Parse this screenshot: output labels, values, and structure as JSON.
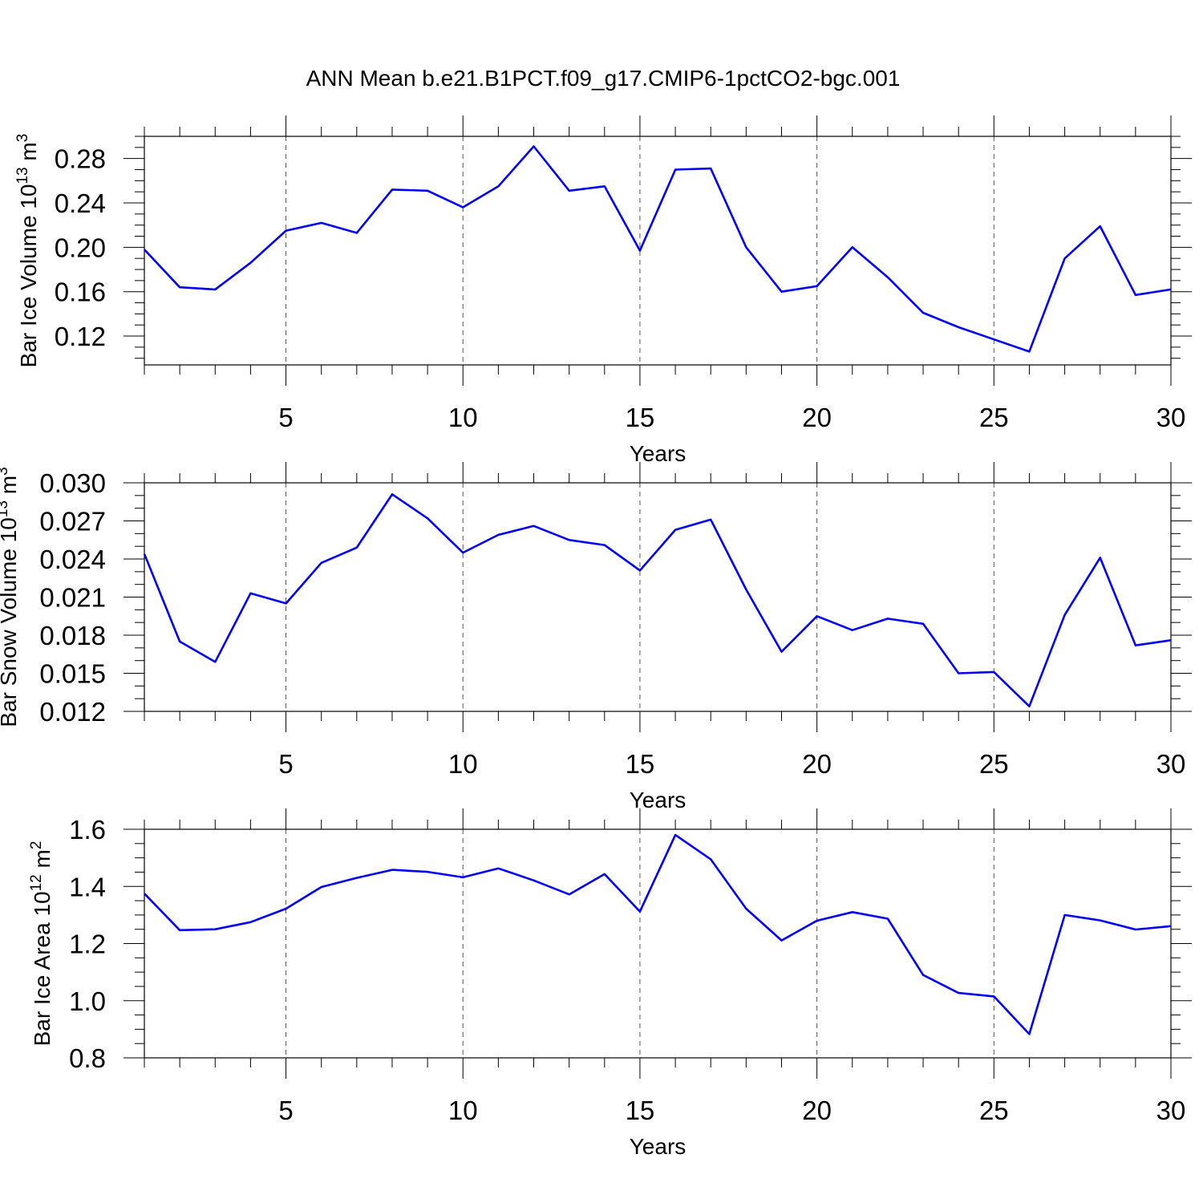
{
  "title": "ANN Mean b.e21.B1PCT.f09_g17.CMIP6-1pctCO2-bgc.001",
  "chart_data": [
    {
      "type": "line",
      "ylabel": {
        "main": "Bar Ice Volume 10",
        "exp": "13",
        "unit": " m",
        "unit_exp": "3"
      },
      "xlabel": "Years",
      "xlim": [
        1,
        30
      ],
      "ylim": [
        0.094,
        0.3
      ],
      "yticks": [
        0.12,
        0.16,
        0.2,
        0.24,
        0.28
      ],
      "ytick_labels": [
        "0.12",
        "0.16",
        "0.20",
        "0.24",
        "0.28"
      ],
      "y_minor_step": 0.01,
      "xticks": [
        5,
        10,
        15,
        20,
        25,
        30
      ],
      "xtick_labels": [
        "5",
        "10",
        "15",
        "20",
        "25",
        "30"
      ],
      "x": [
        1,
        2,
        3,
        4,
        5,
        6,
        7,
        8,
        9,
        10,
        11,
        12,
        13,
        14,
        15,
        16,
        17,
        18,
        19,
        20,
        21,
        22,
        23,
        24,
        25,
        26,
        27,
        28,
        29,
        30
      ],
      "values": [
        0.198,
        0.164,
        0.162,
        0.186,
        0.215,
        0.222,
        0.213,
        0.252,
        0.251,
        0.236,
        0.255,
        0.291,
        0.251,
        0.255,
        0.197,
        0.27,
        0.271,
        0.2,
        0.16,
        0.165,
        0.2,
        0.173,
        0.141,
        0.128,
        0.117,
        0.106,
        0.19,
        0.219,
        0.157,
        0.162
      ]
    },
    {
      "type": "line",
      "ylabel": {
        "main": "Bar Snow Volume 10",
        "exp": "13",
        "unit": " m",
        "unit_exp": "3"
      },
      "xlabel": "Years",
      "xlim": [
        1,
        30
      ],
      "ylim": [
        0.012,
        0.03
      ],
      "yticks": [
        0.012,
        0.015,
        0.018,
        0.021,
        0.024,
        0.027,
        0.03
      ],
      "ytick_labels": [
        "0.012",
        "0.015",
        "0.018",
        "0.021",
        "0.024",
        "0.027",
        "0.030"
      ],
      "y_minor_step": 0.001,
      "xticks": [
        5,
        10,
        15,
        20,
        25,
        30
      ],
      "xtick_labels": [
        "5",
        "10",
        "15",
        "20",
        "25",
        "30"
      ],
      "x": [
        1,
        2,
        3,
        4,
        5,
        6,
        7,
        8,
        9,
        10,
        11,
        12,
        13,
        14,
        15,
        16,
        17,
        18,
        19,
        20,
        21,
        22,
        23,
        24,
        25,
        26,
        27,
        28,
        29,
        30
      ],
      "values": [
        0.0244,
        0.0175,
        0.0159,
        0.0213,
        0.0205,
        0.0237,
        0.0249,
        0.0291,
        0.0272,
        0.0245,
        0.0259,
        0.0266,
        0.0255,
        0.0251,
        0.0231,
        0.0263,
        0.0271,
        0.0216,
        0.0167,
        0.0195,
        0.0184,
        0.0193,
        0.0189,
        0.015,
        0.0151,
        0.0124,
        0.0196,
        0.0241,
        0.0172,
        0.0176
      ]
    },
    {
      "type": "line",
      "ylabel": {
        "main": "Bar Ice Area 10",
        "exp": "12",
        "unit": " m",
        "unit_exp": "2"
      },
      "xlabel": "Years",
      "xlim": [
        1,
        30
      ],
      "ylim": [
        0.8,
        1.6
      ],
      "yticks": [
        0.8,
        1.0,
        1.2,
        1.4,
        1.6
      ],
      "ytick_labels": [
        "0.8",
        "1.0",
        "1.2",
        "1.4",
        "1.6"
      ],
      "y_minor_step": 0.05,
      "xticks": [
        5,
        10,
        15,
        20,
        25,
        30
      ],
      "xtick_labels": [
        "5",
        "10",
        "15",
        "20",
        "25",
        "30"
      ],
      "x": [
        1,
        2,
        3,
        4,
        5,
        6,
        7,
        8,
        9,
        10,
        11,
        12,
        13,
        14,
        15,
        16,
        17,
        18,
        19,
        20,
        21,
        22,
        23,
        24,
        25,
        26,
        27,
        28,
        29,
        30
      ],
      "values": [
        1.375,
        1.247,
        1.25,
        1.275,
        1.322,
        1.398,
        1.43,
        1.458,
        1.451,
        1.432,
        1.463,
        1.421,
        1.372,
        1.443,
        1.312,
        1.58,
        1.495,
        1.322,
        1.211,
        1.28,
        1.31,
        1.287,
        1.09,
        1.027,
        1.015,
        0.883,
        1.3,
        1.281,
        1.249,
        1.261
      ]
    }
  ]
}
